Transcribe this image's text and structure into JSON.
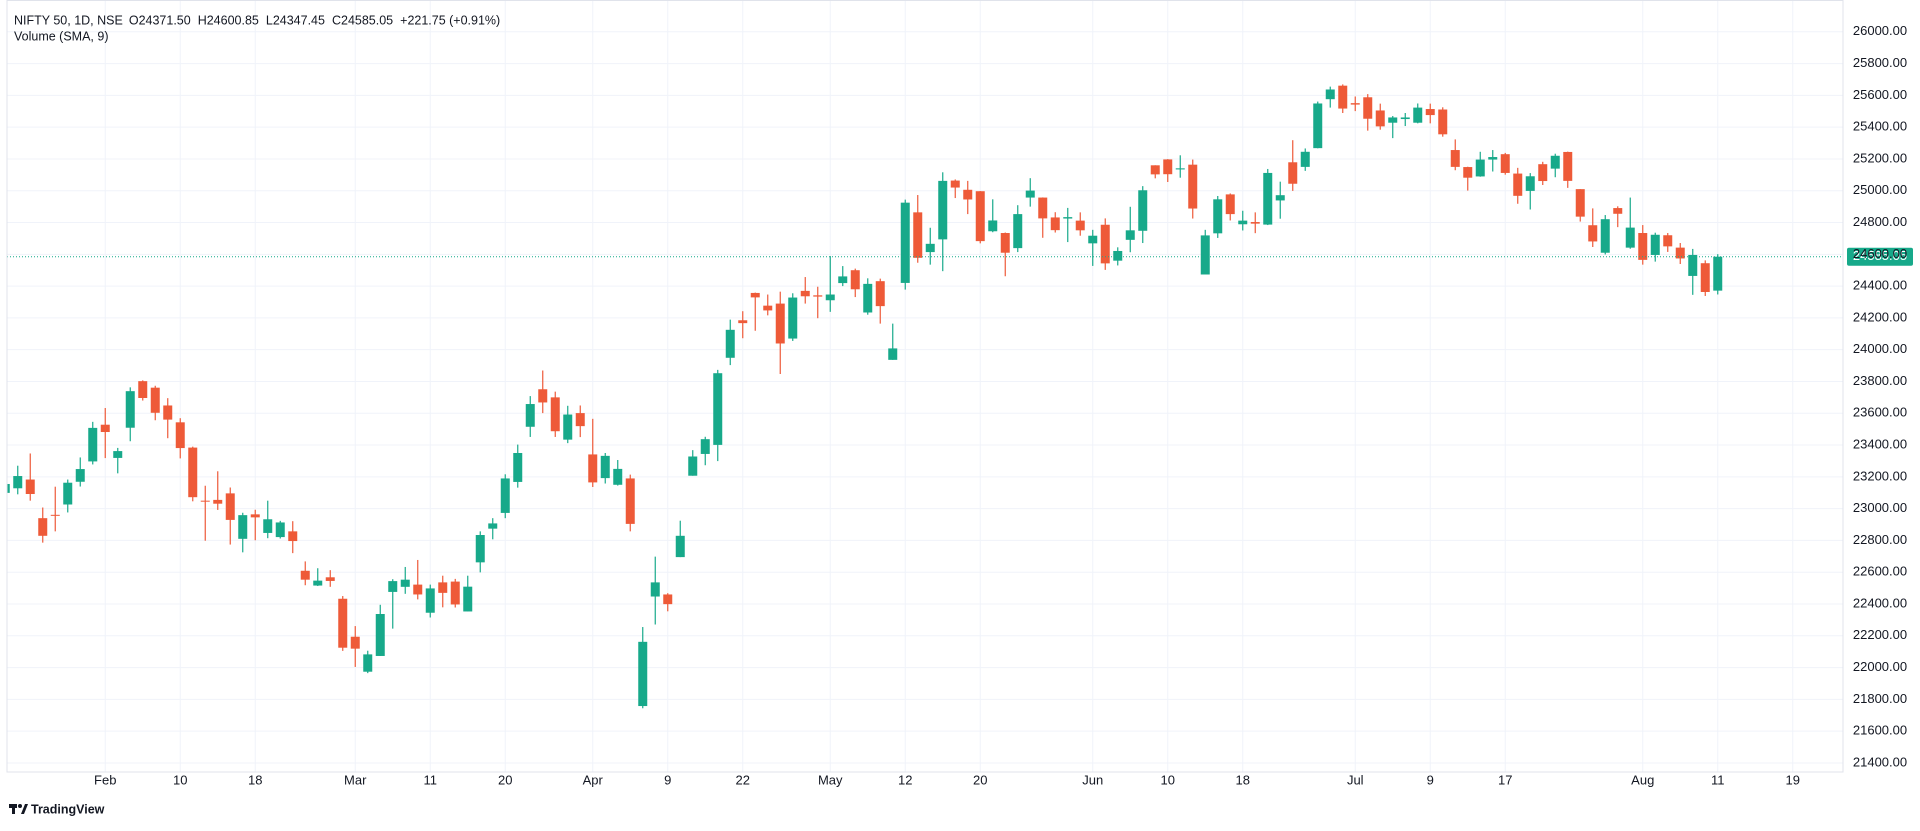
{
  "chart_data": {
    "type": "candlestick",
    "title": "NIFTY 50, 1D, NSE",
    "ohlc_legend": [
      "O24371.50",
      "H24600.85",
      "L24347.45",
      "C24585.05",
      "+221.75 (+0.91%)"
    ],
    "indicator": "Volume (SMA, 9)",
    "branding": "TradingView",
    "up_color": "#17a98a",
    "down_color": "#ee5a38",
    "grid": true,
    "categories": [
      null,
      null,
      null,
      null,
      null,
      null,
      null,
      null,
      "Feb",
      null,
      null,
      null,
      null,
      null,
      "10",
      null,
      null,
      null,
      null,
      null,
      "18",
      null,
      null,
      null,
      null,
      null,
      null,
      null,
      "Mar",
      null,
      null,
      null,
      null,
      null,
      "11",
      null,
      null,
      null,
      null,
      null,
      "20",
      null,
      null,
      null,
      null,
      null,
      null,
      "Apr",
      null,
      null,
      null,
      null,
      null,
      "9",
      null,
      null,
      null,
      null,
      null,
      "22",
      null,
      null,
      null,
      null,
      null,
      null,
      "May",
      null,
      null,
      null,
      null,
      null,
      "12",
      null,
      null,
      null,
      null,
      null,
      "20",
      null,
      null,
      null,
      null,
      null,
      null,
      null,
      null,
      "Jun",
      null,
      null,
      null,
      null,
      null,
      "10",
      null,
      null,
      null,
      null,
      null,
      "18",
      null,
      null,
      null,
      null,
      null,
      null,
      null,
      null,
      "Jul",
      null,
      null,
      null,
      null,
      null,
      "9",
      null,
      null,
      null,
      null,
      null,
      "17",
      null,
      null,
      null,
      null,
      null,
      null,
      null,
      null,
      null,
      null,
      "Aug",
      null,
      null,
      null,
      null,
      null,
      "11",
      null,
      null,
      null,
      null,
      null,
      "19",
      null,
      null,
      null,
      null
    ],
    "open": [
      23099,
      23128,
      23183,
      22940,
      22961,
      23026,
      23169,
      23297,
      23528,
      23319,
      23509,
      23802,
      23761,
      23649,
      23543,
      23384,
      23050,
      23055,
      23096,
      22810,
      22964,
      22847,
      22821,
      22857,
      22609,
      22516,
      22568,
      22433,
      22194,
      21974,
      22073,
      22476,
      22508,
      22522,
      22345,
      22536,
      22541,
      22353,
      22662,
      22874,
      22973,
      23168,
      23515,
      23751,
      23700,
      23434,
      23601,
      23341,
      23192,
      23150,
      23190,
      21758,
      22447,
      22460,
      22695,
      23207,
      23344,
      23401,
      23949,
      24185,
      24357,
      24277,
      24290,
      24070,
      24370,
      24342,
      24311,
      24419,
      24500,
      24234,
      24431,
      23936,
      24420,
      24864,
      24614,
      24694,
      25064,
      25006,
      24997,
      24745,
      24734,
      24639,
      24957,
      24957,
      24832,
      24825,
      24812,
      24669,
      24786,
      24560,
      24691,
      24748,
      25160,
      25197,
      25134,
      25164,
      24473,
      24732,
      24977,
      24789,
      24803,
      24787,
      24939,
      25179,
      25150,
      25268,
      25576,
      25661,
      25551,
      25588,
      25505,
      25428,
      25451,
      25428,
      25514,
      25511,
      25256,
      25149,
      25090,
      25196,
      25230,
      25108,
      24999,
      25167,
      25139,
      25244,
      25010,
      24783,
      24610,
      24891,
      24642,
      24734,
      24596,
      24720,
      24642,
      24464,
      24544,
      24371.5,
      null,
      null,
      null,
      null,
      null,
      null,
      null,
      null,
      null,
      null
    ],
    "high": [
      23169,
      23270,
      23347,
      23007,
      23138,
      23183,
      23322,
      23546,
      23633,
      23382,
      23763,
      23807,
      23773,
      23695,
      23569,
      23390,
      23144,
      23235,
      23133,
      22974,
      22993,
      23050,
      22923,
      22921,
      22668,
      22625,
      22613,
      22450,
      22261,
      22106,
      22395,
      22556,
      22633,
      22677,
      22522,
      22578,
      22558,
      22578,
      22857,
      22940,
      23216,
      23403,
      23708,
      23869,
      23736,
      23647,
      23649,
      23565,
      23350,
      23306,
      23214,
      22255,
      22698,
      22468,
      22924,
      23368,
      23452,
      23873,
      24189,
      24242,
      24359,
      24347,
      24365,
      24355,
      24457,
      24396,
      24589,
      24526,
      24510,
      24449,
      24447,
      24164,
      24944,
      24973,
      24767,
      25116,
      25071,
      25062,
      24998,
      24946,
      24737,
      24909,
      25079,
      24958,
      24865,
      24892,
      24864,
      24754,
      24826,
      24644,
      24899,
      25029,
      25160,
      25199,
      25223,
      25196,
      24754,
      24967,
      24983,
      24874,
      24864,
      25137,
      25057,
      25318,
      25266,
      25561,
      25655,
      25669,
      25593,
      25608,
      25548,
      25470,
      25489,
      25549,
      25548,
      25525,
      25323,
      25151,
      25245,
      25256,
      25238,
      25144,
      25111,
      25182,
      25233,
      25246,
      25010,
      24889,
      24847,
      24902,
      24957,
      24784,
      24736,
      24734,
      24671,
      24634,
      24562,
      24600.85,
      null,
      null,
      null,
      null,
      null,
      null,
      null,
      null,
      null,
      null
    ],
    "low": [
      22981,
      23090,
      23050,
      22786,
      22857,
      22976,
      23139,
      23278,
      23318,
      23222,
      23424,
      23680,
      23556,
      23443,
      23316,
      23046,
      22798,
      22992,
      22774,
      22725,
      22801,
      22814,
      22812,
      22720,
      22518,
      22513,
      22508,
      22105,
      22004,
      21965,
      22073,
      22245,
      22464,
      22429,
      22315,
      22379,
      22378,
      22353,
      22599,
      22807,
      22940,
      23132,
      23451,
      23601,
      23451,
      23412,
      23450,
      23136,
      23158,
      23145,
      22857,
      21744,
      22271,
      22354,
      22695,
      23207,
      23273,
      23299,
      23903,
      24072,
      24119,
      24216,
      23847,
      24055,
      24290,
      24198,
      24238,
      24400,
      24331,
      24220,
      24164,
      23936,
      24378,
      24547,
      24535,
      24494,
      24954,
      24853,
      24669,
      24739,
      24462,
      24614,
      24900,
      24704,
      24737,
      24677,
      24717,
      24527,
      24502,
      24530,
      24613,
      24671,
      25078,
      25055,
      25082,
      24825,
      24473,
      24703,
      24813,
      24750,
      24733,
      24784,
      24824,
      24999,
      25125,
      25267,
      25523,
      25489,
      25501,
      25378,
      25384,
      25331,
      25407,
      25424,
      25424,
      25340,
      25129,
      25001,
      25088,
      25121,
      25101,
      24918,
      24882,
      25036,
      25085,
      25018,
      24806,
      24646,
      24599,
      24771,
      24635,
      24535,
      24554,
      24615,
      24539,
      24345,
      24338,
      24347.45,
      null,
      null,
      null,
      null,
      null,
      null,
      null,
      null,
      null,
      null
    ],
    "close": [
      23155,
      23205,
      23092,
      22829,
      22957,
      23163,
      23249,
      23508,
      23482,
      23362,
      23739,
      23696,
      23603,
      23560,
      23381,
      23072,
      23045,
      23031,
      22929,
      22959,
      22945,
      22933,
      22913,
      22796,
      22553,
      22547,
      22545,
      22125,
      22119,
      22083,
      22337,
      22544,
      22553,
      22460,
      22498,
      22470,
      22397,
      22509,
      22834,
      22907,
      23190,
      23350,
      23658,
      23668,
      23487,
      23592,
      23519,
      23165,
      23332,
      23250,
      22904,
      22162,
      22536,
      22399,
      22829,
      23328,
      23437,
      23852,
      24125,
      24167,
      24329,
      24247,
      24039,
      24328,
      24336,
      24334,
      24347,
      24461,
      24380,
      24414,
      24274,
      24008,
      24925,
      24578,
      24666,
      25062,
      25020,
      24945,
      24683,
      24813,
      24610,
      24853,
      25001,
      24826,
      24752,
      24834,
      24751,
      24717,
      24543,
      24621,
      24751,
      25003,
      25103,
      25104,
      25141,
      24888,
      24719,
      24946,
      24853,
      24812,
      24793,
      25112,
      24972,
      25044,
      25245,
      25549,
      25637,
      25517,
      25542,
      25453,
      25405,
      25461,
      25461,
      25523,
      25476,
      25355,
      25150,
      25082,
      25196,
      25212,
      25112,
      24968,
      25091,
      25061,
      25220,
      25062,
      24837,
      24681,
      24821,
      24855,
      24768,
      24565,
      24723,
      24650,
      24574,
      24596,
      24363,
      24585.05,
      null,
      null,
      null,
      null,
      null,
      null,
      null,
      null,
      null,
      null
    ],
    "last_price": {
      "value": 24585.05,
      "label": "24585.05"
    },
    "ylim": [
      21343,
      26200
    ],
    "yticks": [
      {
        "value": 21400,
        "label": "21400.00"
      },
      {
        "value": 21600,
        "label": "21600.00"
      },
      {
        "value": 21800,
        "label": "21800.00"
      },
      {
        "value": 22000,
        "label": "22000.00"
      },
      {
        "value": 22200,
        "label": "22200.00"
      },
      {
        "value": 22400,
        "label": "22400.00"
      },
      {
        "value": 22600,
        "label": "22600.00"
      },
      {
        "value": 22800,
        "label": "22800.00"
      },
      {
        "value": 23000,
        "label": "23000.00"
      },
      {
        "value": 23200,
        "label": "23200.00"
      },
      {
        "value": 23400,
        "label": "23400.00"
      },
      {
        "value": 23600,
        "label": "23600.00"
      },
      {
        "value": 23800,
        "label": "23800.00"
      },
      {
        "value": 24000,
        "label": "24000.00"
      },
      {
        "value": 24200,
        "label": "24200.00"
      },
      {
        "value": 24400,
        "label": "24400.00"
      },
      {
        "value": 24600,
        "label": "24600.00"
      },
      {
        "value": 24800,
        "label": "24800.00"
      },
      {
        "value": 25000,
        "label": "25000.00"
      },
      {
        "value": 25200,
        "label": "25200.00"
      },
      {
        "value": 25400,
        "label": "25400.00"
      },
      {
        "value": 25600,
        "label": "25600.00"
      },
      {
        "value": 25800,
        "label": "25800.00"
      },
      {
        "value": 26000,
        "label": "26000.00"
      }
    ]
  }
}
